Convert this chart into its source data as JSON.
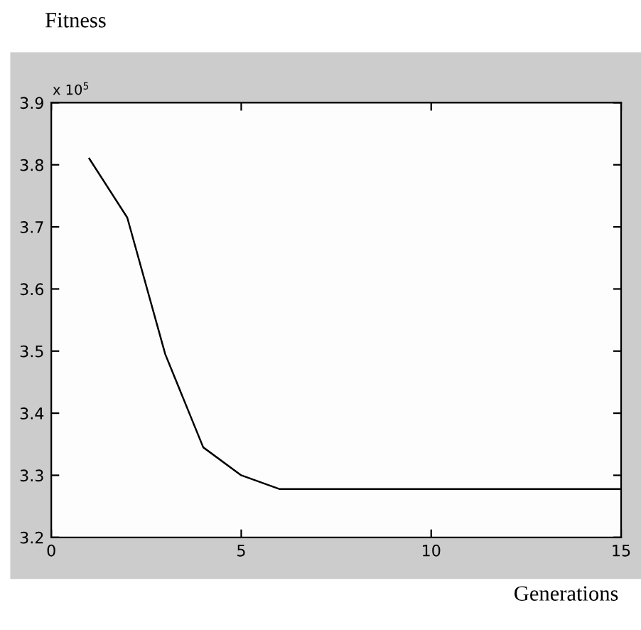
{
  "chart_data": {
    "type": "line",
    "ylabel": "Fitness",
    "xlabel": "Generations",
    "annotations": [
      "x 10$^{5}$"
    ],
    "x": [
      1,
      2,
      3,
      4,
      5,
      6,
      7,
      8,
      9,
      10,
      11,
      12,
      13,
      14,
      15
    ],
    "series": [
      {
        "color": "#000000",
        "values": [
          3.81,
          3.715,
          3.495,
          3.345,
          3.3,
          3.278,
          3.278,
          3.278,
          3.278,
          3.278,
          3.278,
          3.278,
          3.278,
          3.278,
          3.278
        ]
      }
    ],
    "xlim": [
      0,
      15
    ],
    "xticks": [
      0,
      5,
      10,
      15
    ],
    "ylim": [
      3.2,
      3.9
    ],
    "yticks": [
      3.2,
      3.3,
      3.4,
      3.5,
      3.6,
      3.7,
      3.8,
      3.9
    ],
    "grid": false,
    "legend": false,
    "marker": "none",
    "line_style": "solid"
  }
}
